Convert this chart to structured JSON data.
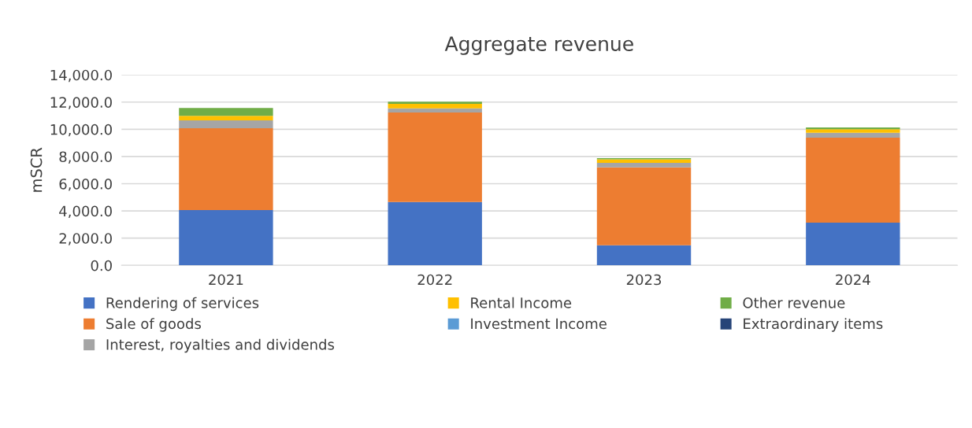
{
  "chart_data": {
    "type": "bar",
    "title": "Aggregate revenue",
    "ylabel": "mSCR",
    "stacked": true,
    "categories": [
      "2021",
      "2022",
      "2023",
      "2024"
    ],
    "series": [
      {
        "name": "Rendering of services",
        "color": "#4472c4",
        "values": [
          4070,
          4650,
          1470,
          3140
        ]
      },
      {
        "name": "Sale of goods",
        "color": "#ed7d31",
        "values": [
          6010,
          6580,
          5730,
          6250
        ]
      },
      {
        "name": "Interest, royalties and dividends",
        "color": "#a5a5a5",
        "values": [
          580,
          310,
          330,
          350
        ]
      },
      {
        "name": "Rental Income",
        "color": "#ffc000",
        "values": [
          330,
          330,
          270,
          270
        ]
      },
      {
        "name": "Investment Income",
        "color": "#5b9bd5",
        "values": [
          0,
          0,
          0,
          0
        ]
      },
      {
        "name": "Other revenue",
        "color": "#70ad47",
        "values": [
          580,
          160,
          80,
          120
        ]
      },
      {
        "name": "Extraordinary items",
        "color": "#264478",
        "values": [
          0,
          0,
          0,
          0
        ]
      }
    ],
    "ylim": [
      0,
      14000
    ],
    "yticks": [
      {
        "value": 0,
        "label": "0.0"
      },
      {
        "value": 2000,
        "label": "2,000.0"
      },
      {
        "value": 4000,
        "label": "4,000.0"
      },
      {
        "value": 6000,
        "label": "6,000.0"
      },
      {
        "value": 8000,
        "label": "8,000.0"
      },
      {
        "value": 10000,
        "label": "10,000.0"
      },
      {
        "value": 12000,
        "label": "12,000.0"
      },
      {
        "value": 14000,
        "label": "14,000.0"
      }
    ],
    "grid": "y",
    "legend": "bottom"
  }
}
